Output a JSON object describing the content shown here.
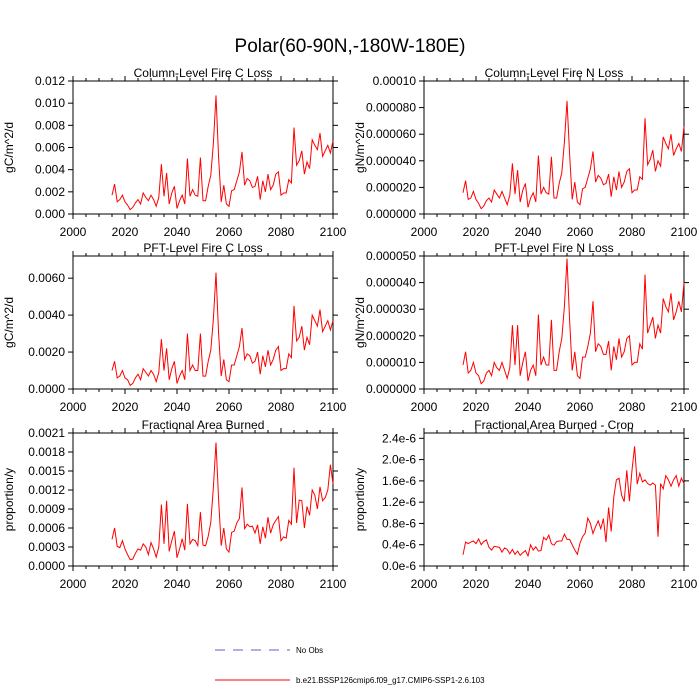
{
  "figure_title": "Polar(60-90N,-180W-180E)",
  "colors": {
    "model": "#ff0000",
    "obs": "#6a5acd",
    "axis": "#000000"
  },
  "legend": {
    "obs_label": "No Obs",
    "model_label": "b.e21.BSSP126cmip6.f09_g17.CMIP6-SSP1-2.6.103"
  },
  "chart_data": [
    {
      "type": "line",
      "title": "Column-Level Fire C Loss",
      "ylabel": "gC/m^2/d",
      "xlabel": "",
      "xlim": [
        2000,
        2100
      ],
      "ylim": [
        0,
        0.012
      ],
      "x_ticks": [
        "2000",
        "2020",
        "2040",
        "2060",
        "2080",
        "2100"
      ],
      "y_ticks": [
        {
          "v": 0,
          "t": "0.000"
        },
        {
          "v": 0.002,
          "t": "0.002"
        },
        {
          "v": 0.004,
          "t": "0.004"
        },
        {
          "v": 0.006,
          "t": "0.006"
        },
        {
          "v": 0.008,
          "t": "0.008"
        },
        {
          "v": 0.01,
          "t": "0.010"
        },
        {
          "v": 0.012,
          "t": "0.012"
        }
      ],
      "series": [
        {
          "name": "b.e21.BSSP126cmip6.f09_g17.CMIP6-SSP1-2.6.103",
          "x_start": 2015,
          "values": [
            0.0017,
            0.0027,
            0.0011,
            0.0013,
            0.0017,
            0.0011,
            0.0008,
            0.0004,
            0.0006,
            0.001,
            0.0013,
            0.0009,
            0.0019,
            0.0015,
            0.0012,
            0.0017,
            0.0013,
            0.0007,
            0.0015,
            0.0045,
            0.0016,
            0.0037,
            0.0009,
            0.0019,
            0.0025,
            0.0005,
            0.0012,
            0.0017,
            0.0009,
            0.005,
            0.0016,
            0.0022,
            0.0017,
            0.0016,
            0.0051,
            0.0012,
            0.0012,
            0.0025,
            0.0035,
            0.0064,
            0.0107,
            0.0051,
            0.0011,
            0.0026,
            0.0009,
            0.0007,
            0.0021,
            0.0022,
            0.003,
            0.0038,
            0.0056,
            0.0026,
            0.0032,
            0.003,
            0.0024,
            0.0025,
            0.0034,
            0.0013,
            0.003,
            0.002,
            0.0036,
            0.0022,
            0.0026,
            0.0036,
            0.0038,
            0.0017,
            0.0019,
            0.0019,
            0.0031,
            0.0028,
            0.0078,
            0.0044,
            0.0048,
            0.0057,
            0.0036,
            0.0047,
            0.0041,
            0.0067,
            0.0062,
            0.0058,
            0.0073,
            0.0052,
            0.0057,
            0.0062,
            0.0055,
            0.0066
          ]
        }
      ]
    },
    {
      "type": "line",
      "title": "Column-Level Fire N Loss",
      "ylabel": "gN/m^2/d",
      "xlabel": "",
      "xlim": [
        2000,
        2100
      ],
      "ylim": [
        0,
        0.0001
      ],
      "x_ticks": [
        "2000",
        "2020",
        "2040",
        "2060",
        "2080",
        "2100"
      ],
      "y_ticks": [
        {
          "v": 0,
          "t": "0.000000"
        },
        {
          "v": 2e-05,
          "t": "0.000020"
        },
        {
          "v": 4e-05,
          "t": "0.000040"
        },
        {
          "v": 6e-05,
          "t": "0.000060"
        },
        {
          "v": 8e-05,
          "t": "0.000080"
        },
        {
          "v": 0.0001,
          "t": "0.00010"
        }
      ],
      "series": [
        {
          "name": "b.e21.BSSP126cmip6.f09_g17.CMIP6-SSP1-2.6.103",
          "x_start": 2015,
          "values": [
            1.6e-05,
            2.5e-05,
            1.1e-05,
            1.2e-05,
            1.7e-05,
            1.1e-05,
            8e-06,
            4e-06,
            6e-06,
            1e-05,
            1.2e-05,
            9e-06,
            1.8e-05,
            1.5e-05,
            1.2e-05,
            1.7e-05,
            1.2e-05,
            7e-06,
            1.4e-05,
            3.8e-05,
            1.5e-05,
            3.3e-05,
            9e-06,
            1.8e-05,
            2.3e-05,
            5e-06,
            1.2e-05,
            1.6e-05,
            9e-06,
            4.4e-05,
            1.5e-05,
            2e-05,
            1.6e-05,
            1.5e-05,
            4.3e-05,
            1.2e-05,
            1.2e-05,
            2.3e-05,
            3.1e-05,
            5.4e-05,
            8.5e-05,
            4.5e-05,
            1.1e-05,
            2.4e-05,
            9e-06,
            7e-06,
            1.9e-05,
            2e-05,
            2.7e-05,
            3.4e-05,
            4.7e-05,
            2.4e-05,
            2.9e-05,
            2.7e-05,
            2.2e-05,
            2.3e-05,
            3e-05,
            1.3e-05,
            2.8e-05,
            1.8e-05,
            3.2e-05,
            2e-05,
            2.4e-05,
            3.2e-05,
            3.4e-05,
            1.6e-05,
            1.8e-05,
            1.8e-05,
            2.8e-05,
            2.6e-05,
            7.2e-05,
            3.7e-05,
            4.1e-05,
            4.8e-05,
            3.2e-05,
            4e-05,
            3.6e-05,
            5.8e-05,
            5.3e-05,
            4.9e-05,
            6e-05,
            4.4e-05,
            4.9e-05,
            5.3e-05,
            4.7e-05,
            6.6e-05
          ]
        }
      ]
    },
    {
      "type": "line",
      "title": "PFT-Level Fire C Loss",
      "ylabel": "gC/m^2/d",
      "xlabel": "",
      "xlim": [
        2000,
        2100
      ],
      "ylim": [
        0,
        0.0072
      ],
      "x_ticks": [
        "2000",
        "2020",
        "2040",
        "2060",
        "2080",
        "2100"
      ],
      "y_ticks": [
        {
          "v": 0,
          "t": "0.0000"
        },
        {
          "v": 0.002,
          "t": "0.0020"
        },
        {
          "v": 0.004,
          "t": "0.0040"
        },
        {
          "v": 0.006,
          "t": "0.0060"
        }
      ],
      "series": [
        {
          "name": "b.e21.BSSP126cmip6.f09_g17.CMIP6-SSP1-2.6.103",
          "x_start": 2015,
          "values": [
            0.001,
            0.0015,
            0.0006,
            0.0007,
            0.001,
            0.0006,
            0.0005,
            0.0002,
            0.0003,
            0.0006,
            0.0008,
            0.0005,
            0.0011,
            0.0009,
            0.0007,
            0.001,
            0.0008,
            0.0004,
            0.0009,
            0.0027,
            0.001,
            0.0022,
            0.0005,
            0.0011,
            0.0015,
            0.0003,
            0.0007,
            0.001,
            0.0005,
            0.003,
            0.001,
            0.0013,
            0.001,
            0.001,
            0.003,
            0.0007,
            0.0007,
            0.0015,
            0.0021,
            0.0038,
            0.0063,
            0.003,
            0.0007,
            0.0016,
            0.0005,
            0.0004,
            0.0013,
            0.0013,
            0.0018,
            0.0023,
            0.0033,
            0.0016,
            0.0019,
            0.0018,
            0.0014,
            0.0015,
            0.002,
            0.0008,
            0.0018,
            0.0012,
            0.0021,
            0.0013,
            0.0016,
            0.0021,
            0.0023,
            0.001,
            0.0011,
            0.0011,
            0.0019,
            0.0017,
            0.0045,
            0.0026,
            0.0028,
            0.0034,
            0.0021,
            0.0028,
            0.0024,
            0.004,
            0.0037,
            0.0034,
            0.0043,
            0.0031,
            0.0034,
            0.0037,
            0.0032,
            0.0037
          ]
        }
      ]
    },
    {
      "type": "line",
      "title": "PFT-Level Fire N Loss",
      "ylabel": "gN/m^2/d",
      "xlabel": "",
      "xlim": [
        2000,
        2100
      ],
      "ylim": [
        0,
        5e-05
      ],
      "x_ticks": [
        "2000",
        "2020",
        "2040",
        "2060",
        "2080",
        "2100"
      ],
      "y_ticks": [
        {
          "v": 0,
          "t": "0.000000"
        },
        {
          "v": 1e-05,
          "t": "0.000010"
        },
        {
          "v": 2e-05,
          "t": "0.000020"
        },
        {
          "v": 3e-05,
          "t": "0.000030"
        },
        {
          "v": 4e-05,
          "t": "0.000040"
        },
        {
          "v": 5e-05,
          "t": "0.000050"
        }
      ],
      "series": [
        {
          "name": "b.e21.BSSP126cmip6.f09_g17.CMIP6-SSP1-2.6.103",
          "x_start": 2015,
          "values": [
            9e-06,
            1.4e-05,
            6e-06,
            7e-06,
            1e-05,
            6e-06,
            5e-06,
            2e-06,
            3e-06,
            6e-06,
            7e-06,
            5e-06,
            1e-05,
            8e-06,
            7e-06,
            1e-05,
            7e-06,
            4e-06,
            8e-06,
            2.4e-05,
            9e-06,
            2.4e-05,
            5e-06,
            1e-05,
            1.4e-05,
            3e-06,
            7e-06,
            9e-06,
            5e-06,
            2.8e-05,
            9e-06,
            1.2e-05,
            9e-06,
            9e-06,
            2.6e-05,
            7e-06,
            7e-06,
            1.4e-05,
            1.9e-05,
            3.1e-05,
            4.9e-05,
            2.6e-05,
            7e-06,
            1.4e-05,
            5e-06,
            4e-06,
            1.2e-05,
            1.2e-05,
            1.6e-05,
            2.1e-05,
            3.3e-05,
            1.4e-05,
            1.7e-05,
            1.6e-05,
            1.3e-05,
            1.3e-05,
            1.8e-05,
            7e-06,
            1.6e-05,
            1.1e-05,
            1.9e-05,
            1.2e-05,
            1.4e-05,
            1.9e-05,
            2e-05,
            9e-06,
            1e-05,
            1e-05,
            1.7e-05,
            1.5e-05,
            4.3e-05,
            2.1e-05,
            2.4e-05,
            2.7e-05,
            1.9e-05,
            2.4e-05,
            2.1e-05,
            3.4e-05,
            3.1e-05,
            2.9e-05,
            3.6e-05,
            2.6e-05,
            2.9e-05,
            3.3e-05,
            2.9e-05,
            4e-05
          ]
        }
      ]
    },
    {
      "type": "line",
      "title": "Fractional Area Burned",
      "ylabel": "proportion/y",
      "xlabel": "",
      "xlim": [
        2000,
        2100
      ],
      "ylim": [
        0,
        0.0021
      ],
      "x_ticks": [
        "2000",
        "2020",
        "2040",
        "2060",
        "2080",
        "2100"
      ],
      "y_ticks": [
        {
          "v": 0,
          "t": "0.0000"
        },
        {
          "v": 0.0003,
          "t": "0.0003"
        },
        {
          "v": 0.0006,
          "t": "0.0006"
        },
        {
          "v": 0.0009,
          "t": "0.0009"
        },
        {
          "v": 0.0012,
          "t": "0.0012"
        },
        {
          "v": 0.0015,
          "t": "0.0015"
        },
        {
          "v": 0.0018,
          "t": "0.0018"
        },
        {
          "v": 0.0021,
          "t": "0.0021"
        }
      ],
      "series": [
        {
          "name": "b.e21.BSSP126cmip6.f09_g17.CMIP6-SSP1-2.6.103",
          "x_start": 2015,
          "values": [
            0.00042,
            0.0006,
            0.00031,
            0.00029,
            0.0004,
            0.00027,
            0.00018,
            0.0001,
            0.00011,
            0.0002,
            0.00027,
            0.00025,
            0.00035,
            0.0003,
            0.00018,
            0.00037,
            0.00027,
            0.00014,
            0.0003,
            0.00097,
            0.00035,
            0.00103,
            0.00023,
            0.0004,
            0.00055,
            0.00013,
            0.00027,
            0.00043,
            0.00025,
            0.00098,
            0.00035,
            0.00042,
            0.0004,
            0.00032,
            0.00085,
            0.00033,
            0.00032,
            0.00047,
            0.00069,
            0.00125,
            0.00195,
            0.00105,
            0.00032,
            0.0006,
            0.00027,
            0.00022,
            0.00053,
            0.00055,
            0.00068,
            0.00075,
            0.00124,
            0.00059,
            0.00066,
            0.00062,
            0.00063,
            0.00052,
            0.00065,
            0.00035,
            0.00062,
            0.00044,
            0.00077,
            0.00052,
            0.00065,
            0.00072,
            0.00078,
            0.0004,
            0.00046,
            0.00044,
            0.00072,
            0.00066,
            0.00155,
            0.00068,
            0.00104,
            0.00103,
            0.0006,
            0.00094,
            0.0008,
            0.0012,
            0.00112,
            0.0009,
            0.00125,
            0.00103,
            0.00108,
            0.0012,
            0.0016,
            0.0013
          ]
        }
      ]
    },
    {
      "type": "line",
      "title": "Fractional Area Burned - Crop",
      "ylabel": "proportion/y",
      "xlabel": "",
      "xlim": [
        2000,
        2100
      ],
      "ylim": [
        0,
        2.5e-06
      ],
      "x_ticks": [
        "2000",
        "2020",
        "2040",
        "2060",
        "2080",
        "2100"
      ],
      "y_ticks": [
        {
          "v": 0,
          "t": "0.0e-6"
        },
        {
          "v": 4e-07,
          "t": "0.4e-6"
        },
        {
          "v": 8e-07,
          "t": "0.8e-6"
        },
        {
          "v": 1.2e-06,
          "t": "1.2e-6"
        },
        {
          "v": 1.6e-06,
          "t": "1.6e-6"
        },
        {
          "v": 2e-06,
          "t": "2.0e-6"
        },
        {
          "v": 2.4e-06,
          "t": "2.4e-6"
        }
      ],
      "series": [
        {
          "name": "b.e21.BSSP126cmip6.f09_g17.CMIP6-SSP1-2.6.103",
          "x_start": 2015,
          "values": [
            2.1e-07,
            4.5e-07,
            4.2e-07,
            4.5e-07,
            4.7e-07,
            4.2e-07,
            5.1e-07,
            4e-07,
            4.6e-07,
            4.9e-07,
            3.5e-07,
            3e-07,
            3.7e-07,
            3.6e-07,
            3.5e-07,
            2.6e-07,
            3.4e-07,
            3.1e-07,
            2.3e-07,
            3.1e-07,
            2.2e-07,
            2.8e-07,
            2e-07,
            2.5e-07,
            2.9e-07,
            1.9e-07,
            4e-07,
            3e-07,
            3.6e-07,
            2.8e-07,
            2.9e-07,
            5.4e-07,
            4.9e-07,
            5.8e-07,
            4.2e-07,
            3.9e-07,
            4.6e-07,
            4.7e-07,
            4.7e-07,
            6e-07,
            5e-07,
            5e-07,
            4e-07,
            3e-07,
            2.2e-07,
            4.3e-07,
            5.5e-07,
            6.2e-07,
            9e-07,
            8e-07,
            6.1e-07,
            7.4e-07,
            8.5e-07,
            7e-07,
            8.9e-07,
            4.5e-07,
            1.1e-06,
            6.5e-07,
            1.3e-06,
            1.62e-06,
            1.65e-06,
            1.33e-06,
            1.21e-06,
            1.8e-06,
            1.22e-06,
            1.8e-06,
            2.25e-06,
            1.54e-06,
            1.74e-06,
            1.58e-06,
            1.62e-06,
            1.55e-06,
            1.52e-06,
            1.56e-06,
            1.52e-06,
            5.5e-07,
            1.55e-06,
            1.45e-06,
            1.7e-06,
            1.62e-06,
            1.5e-06,
            1.62e-06,
            1.7e-06,
            1.5e-06,
            1.65e-06,
            1.55e-06
          ]
        }
      ]
    }
  ]
}
